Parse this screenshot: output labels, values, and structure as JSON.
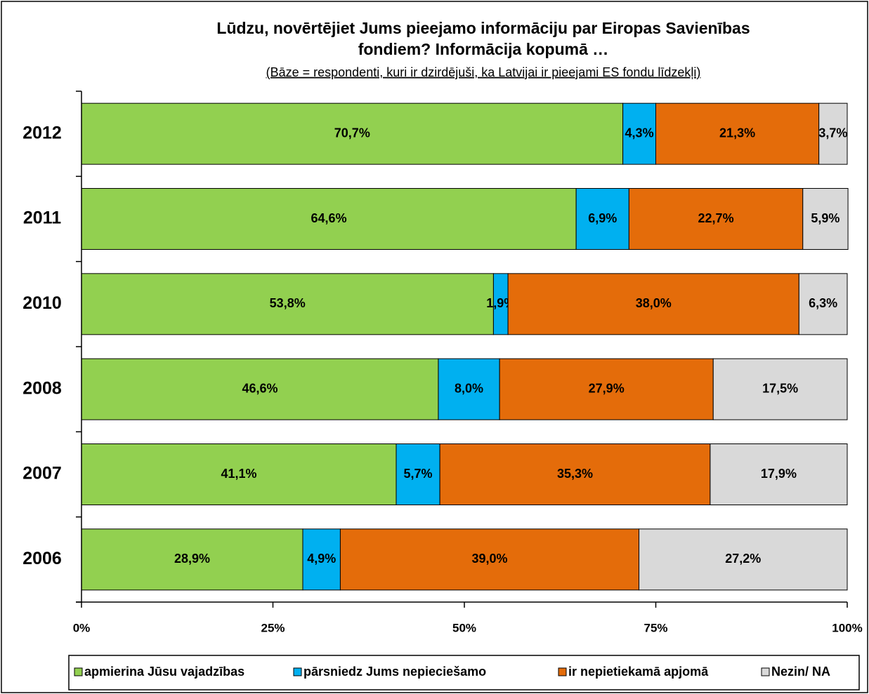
{
  "chart_data": {
    "type": "stacked-barh",
    "title": [
      "Lūdzu, novērtējiet Jums pieejamo informāciju par Eiropas Savienības",
      "fondiem? Informācija kopumā …"
    ],
    "subtitle": "(Bāze = respondenti, kuri ir dzirdējuši, ka Latvijai ir pieejami ES fondu līdzekļi)",
    "categories": [
      "2012",
      "2011",
      "2010",
      "2008",
      "2007",
      "2006"
    ],
    "series": [
      {
        "name": "apmierina Jūsu vajadzības",
        "color": "#92d050",
        "values": [
          70.7,
          64.6,
          53.8,
          46.6,
          41.1,
          28.9
        ],
        "value_labels": [
          "70,7%",
          "64,6%",
          "53,8%",
          "46,6%",
          "41,1%",
          "28,9%"
        ]
      },
      {
        "name": "pārsniedz Jums nepieciešamo",
        "color": "#00b0f0",
        "values": [
          4.3,
          6.9,
          1.9,
          8.0,
          5.7,
          4.9
        ],
        "value_labels": [
          "4,3%",
          "6,9%",
          "1,9%",
          "8,0%",
          "5,7%",
          "4,9%"
        ]
      },
      {
        "name": "ir nepietiekamā apjomā",
        "color": "#e46c0a",
        "values": [
          21.3,
          22.7,
          38.0,
          27.9,
          35.3,
          39.0
        ],
        "value_labels": [
          "21,3%",
          "22,7%",
          "38,0%",
          "27,9%",
          "35,3%",
          "39,0%"
        ]
      },
      {
        "name": "Nezin/ NA",
        "color": "#d9d9d9",
        "values": [
          3.7,
          5.9,
          6.3,
          17.5,
          17.9,
          27.2
        ],
        "value_labels": [
          "3,7%",
          "5,9%",
          "6,3%",
          "17,5%",
          "17,9%",
          "27,2%"
        ]
      }
    ],
    "xlim": [
      0,
      100
    ],
    "xticks": [
      {
        "value": 0,
        "label": "0%"
      },
      {
        "value": 25,
        "label": "25%"
      },
      {
        "value": 50,
        "label": "50%"
      },
      {
        "value": 75,
        "label": "75%"
      },
      {
        "value": 100,
        "label": "100%"
      }
    ],
    "legend": "bottom"
  }
}
